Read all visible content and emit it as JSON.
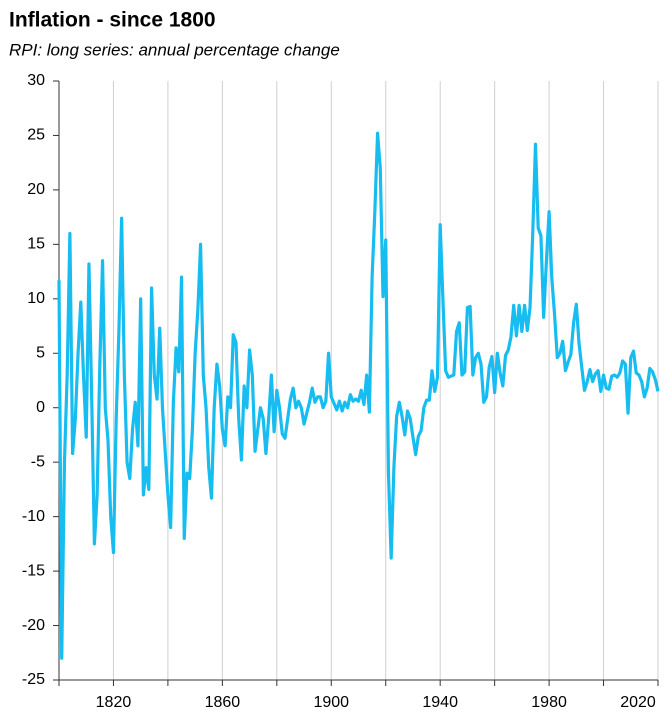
{
  "chart_data": {
    "type": "line",
    "title": "Inflation - since 1800",
    "subtitle": "RPI: long series: annual percentage change",
    "color": "#17bdf0",
    "x": [
      1800,
      1801,
      1802,
      1803,
      1804,
      1805,
      1806,
      1807,
      1808,
      1809,
      1810,
      1811,
      1812,
      1813,
      1814,
      1815,
      1816,
      1817,
      1818,
      1819,
      1820,
      1821,
      1822,
      1823,
      1824,
      1825,
      1826,
      1827,
      1828,
      1829,
      1830,
      1831,
      1832,
      1833,
      1834,
      1835,
      1836,
      1837,
      1838,
      1839,
      1840,
      1841,
      1842,
      1843,
      1844,
      1845,
      1846,
      1847,
      1848,
      1849,
      1850,
      1851,
      1852,
      1853,
      1854,
      1855,
      1856,
      1857,
      1858,
      1859,
      1860,
      1861,
      1862,
      1863,
      1864,
      1865,
      1866,
      1867,
      1868,
      1869,
      1870,
      1871,
      1872,
      1873,
      1874,
      1875,
      1876,
      1877,
      1878,
      1879,
      1880,
      1881,
      1882,
      1883,
      1884,
      1885,
      1886,
      1887,
      1888,
      1889,
      1890,
      1891,
      1892,
      1893,
      1894,
      1895,
      1896,
      1897,
      1898,
      1899,
      1900,
      1901,
      1902,
      1903,
      1904,
      1905,
      1906,
      1907,
      1908,
      1909,
      1910,
      1911,
      1912,
      1913,
      1914,
      1915,
      1916,
      1917,
      1918,
      1919,
      1920,
      1921,
      1922,
      1923,
      1924,
      1925,
      1926,
      1927,
      1928,
      1929,
      1930,
      1931,
      1932,
      1933,
      1934,
      1935,
      1936,
      1937,
      1938,
      1939,
      1940,
      1941,
      1942,
      1943,
      1944,
      1945,
      1946,
      1947,
      1948,
      1949,
      1950,
      1951,
      1952,
      1953,
      1954,
      1955,
      1956,
      1957,
      1958,
      1959,
      1960,
      1961,
      1962,
      1963,
      1964,
      1965,
      1966,
      1967,
      1968,
      1969,
      1970,
      1971,
      1972,
      1973,
      1974,
      1975,
      1976,
      1977,
      1978,
      1979,
      1980,
      1981,
      1982,
      1983,
      1984,
      1985,
      1986,
      1987,
      1988,
      1989,
      1990,
      1991,
      1992,
      1993,
      1994,
      1995,
      1996,
      1997,
      1998,
      1999,
      2000,
      2001,
      2002,
      2003,
      2004,
      2005,
      2006,
      2007,
      2008,
      2009,
      2010,
      2011,
      2012,
      2013,
      2014,
      2015,
      2016,
      2017,
      2018,
      2019,
      2020
    ],
    "values": [
      11.7,
      -23,
      -5,
      3,
      16,
      -4.2,
      -1,
      5,
      9.7,
      3,
      -2.7,
      13.2,
      1,
      -12.5,
      -8,
      4,
      13.5,
      0,
      -3,
      -10,
      -13.3,
      -1,
      7,
      17.4,
      3,
      -5,
      -6.5,
      -2,
      0.5,
      -3.5,
      10,
      -8,
      -5.5,
      -7.5,
      11,
      3,
      0.8,
      7.3,
      0,
      -4,
      -8,
      -11,
      0.5,
      5.5,
      3.3,
      12,
      -12,
      -6,
      -6.5,
      -2,
      5,
      9,
      15,
      3,
      0,
      -5.5,
      -8.3,
      0,
      4,
      2,
      -2,
      -3.5,
      1,
      0,
      6.7,
      6,
      -1,
      -4.8,
      2,
      0,
      5.3,
      3,
      -4,
      -2,
      0,
      -1,
      -4.2,
      -1,
      3,
      -2.2,
      1.6,
      0,
      -2.4,
      -2.8,
      -1,
      0.8,
      1.8,
      0,
      0.6,
      0,
      -1.5,
      -0.5,
      0.5,
      1.8,
      0.5,
      1,
      1,
      0,
      0.6,
      5,
      1,
      0.4,
      -0.2,
      0.6,
      -0.3,
      0.5,
      0,
      1.2,
      0.6,
      0.8,
      0.6,
      1.6,
      0.3,
      3,
      -0.4,
      12,
      18,
      25.2,
      22,
      10.2,
      15.4,
      -6,
      -13.8,
      -5.5,
      -0.8,
      0.5,
      -0.8,
      -2.5,
      -0.3,
      -1,
      -2.7,
      -4.3,
      -2.6,
      -2.1,
      0,
      0.7,
      0.7,
      3.4,
      1.5,
      2.8,
      16.8,
      10,
      3.4,
      2.8,
      2.9,
      3,
      7,
      7.8,
      3,
      3.3,
      9.2,
      9.3,
      3,
      4.6,
      5,
      4,
      0.5,
      1,
      3.7,
      4.7,
      1.4,
      5,
      3.2,
      2,
      4.8,
      5.3,
      6.5,
      9.4,
      6.6,
      9.4,
      7,
      9.4,
      7.1,
      9.2,
      16,
      24.2,
      16.5,
      15.8,
      8.3,
      13.4,
      18,
      11.9,
      8.6,
      4.6,
      5,
      6.1,
      3.4,
      4.2,
      4.9,
      7.8,
      9.5,
      5.9,
      3.7,
      1.6,
      2.4,
      3.5,
      2.4,
      3.1,
      3.4,
      1.5,
      3,
      1.8,
      1.7,
      2.9,
      3,
      2.8,
      3.2,
      4.3,
      4,
      -0.5,
      4.6,
      5.2,
      3.2,
      3,
      2.4,
      1,
      1.8,
      3.6,
      3.3,
      2.6,
      1.5
    ],
    "xlim": [
      1800,
      2020
    ],
    "xticks": [
      1820,
      1860,
      1900,
      1940,
      1980,
      2020
    ],
    "xminor": [
      1800,
      1840,
      1880,
      1920,
      1960,
      2000
    ],
    "ylim": [
      -25,
      30
    ],
    "yticks": [
      -25,
      -20,
      -15,
      -10,
      -5,
      0,
      5,
      10,
      15,
      20,
      25,
      30
    ],
    "grid": true
  }
}
